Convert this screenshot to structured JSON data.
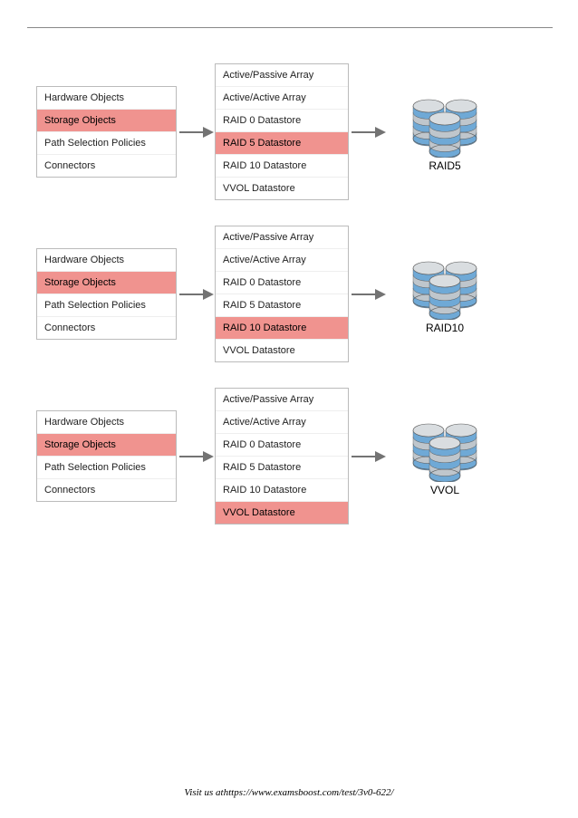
{
  "leftMenu": {
    "items": [
      {
        "label": "Hardware Objects",
        "selected": false
      },
      {
        "label": "Storage Objects",
        "selected": true
      },
      {
        "label": "Path Selection Policies",
        "selected": false
      },
      {
        "label": "Connectors",
        "selected": false
      }
    ]
  },
  "rightMenuItems": [
    "Active/Passive Array",
    "Active/Active Array",
    "RAID 0 Datastore",
    "RAID 5 Datastore",
    "RAID 10 Datastore",
    "VVOL Datastore"
  ],
  "rows": [
    {
      "selectedRight": "RAID 5 Datastore",
      "storageLabel": "RAID5"
    },
    {
      "selectedRight": "RAID 10 Datastore",
      "storageLabel": "RAID10"
    },
    {
      "selectedRight": "VVOL Datastore",
      "storageLabel": "VVOL"
    }
  ],
  "arrow": {
    "stroke": "#737373",
    "headFill": "#737373",
    "strokeWidth": 2
  },
  "colors": {
    "selectedBg": "#f0938f",
    "menuBorder": "#bbbbbb",
    "background": "#ffffff"
  },
  "footer": {
    "text": "Visit us athttps://www.examsboost.com/test/3v0-622/"
  }
}
